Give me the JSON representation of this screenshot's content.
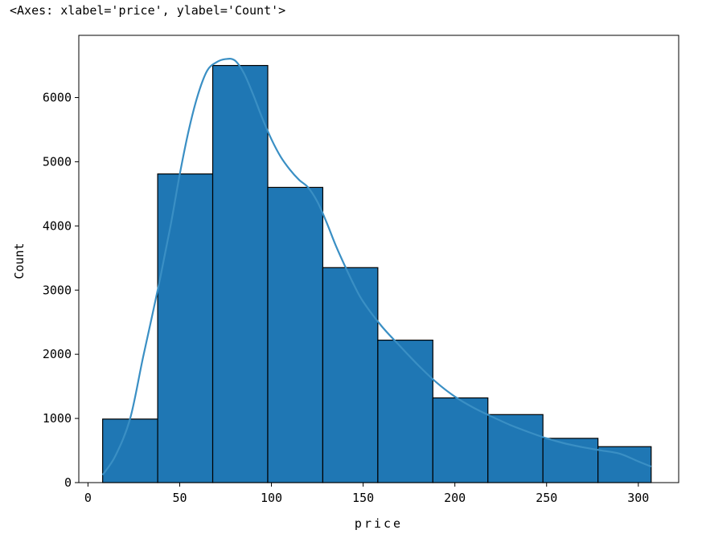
{
  "repr_text": "<Axes: xlabel='price', ylabel='Count'>",
  "chart_data": {
    "type": "bar",
    "subtype": "histogram-with-kde",
    "xlabel": "price",
    "ylabel": "Count",
    "xlim": [
      -5,
      322
    ],
    "ylim": [
      0,
      6970
    ],
    "x_ticks": [
      0,
      50,
      100,
      150,
      200,
      250,
      300
    ],
    "y_ticks": [
      0,
      1000,
      2000,
      3000,
      4000,
      5000,
      6000
    ],
    "bin_edges": [
      8,
      38,
      68,
      98,
      128,
      158,
      188,
      218,
      248,
      278,
      307
    ],
    "values": [
      990,
      4810,
      6500,
      4600,
      3350,
      2220,
      1320,
      1060,
      690,
      560
    ],
    "bar_color": "#1f77b4",
    "edge_color": "#000000",
    "kde": {
      "color": "#3a8fc4",
      "x": [
        8,
        15,
        23,
        30,
        38,
        45,
        50,
        55,
        60,
        65,
        70,
        75,
        80,
        85,
        90,
        95,
        100,
        105,
        110,
        115,
        120,
        125,
        130,
        135,
        140,
        145,
        150,
        160,
        170,
        180,
        190,
        200,
        210,
        220,
        230,
        240,
        250,
        260,
        270,
        280,
        290,
        300,
        307
      ],
      "y": [
        120,
        420,
        1000,
        1950,
        3000,
        4000,
        4800,
        5500,
        6050,
        6420,
        6550,
        6600,
        6580,
        6380,
        6050,
        5680,
        5350,
        5080,
        4880,
        4720,
        4600,
        4380,
        4060,
        3700,
        3380,
        3080,
        2820,
        2440,
        2130,
        1830,
        1560,
        1340,
        1170,
        1030,
        900,
        790,
        690,
        610,
        550,
        500,
        450,
        330,
        250
      ]
    }
  }
}
